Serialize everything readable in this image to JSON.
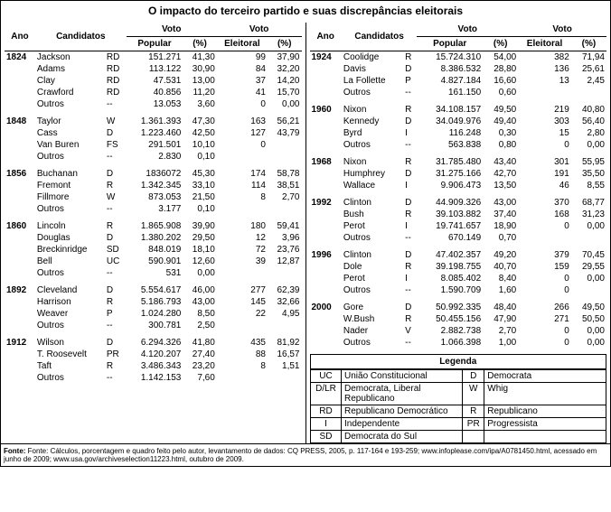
{
  "title": "O impacto  do terceiro partido e suas discrepâncias eleitorais",
  "headers": {
    "ano": "Ano",
    "candidatos": "Candidatos",
    "voto": "Voto",
    "popular": "Popular",
    "pct": "(%)",
    "eleitoral": "Eleitoral"
  },
  "left_years": [
    {
      "year": "1824",
      "rows": [
        {
          "cand": "Jackson",
          "party": "RD",
          "pop": "151.271",
          "ppct": "41,30",
          "ev": "99",
          "evpct": "37,90"
        },
        {
          "cand": "Adams",
          "party": "RD",
          "pop": "113.122",
          "ppct": "30,90",
          "ev": "84",
          "evpct": "32,20"
        },
        {
          "cand": "Clay",
          "party": "RD",
          "pop": "47.531",
          "ppct": "13,00",
          "ev": "37",
          "evpct": "14,20"
        },
        {
          "cand": "Crawford",
          "party": "RD",
          "pop": "40.856",
          "ppct": "11,20",
          "ev": "41",
          "evpct": "15,70"
        },
        {
          "cand": "Outros",
          "party": "--",
          "pop": "13.053",
          "ppct": "3,60",
          "ev": "0",
          "evpct": "0,00"
        }
      ]
    },
    {
      "year": "1848",
      "rows": [
        {
          "cand": "Taylor",
          "party": "W",
          "pop": "1.361.393",
          "ppct": "47,30",
          "ev": "163",
          "evpct": "56,21"
        },
        {
          "cand": "Cass",
          "party": "D",
          "pop": "1.223.460",
          "ppct": "42,50",
          "ev": "127",
          "evpct": "43,79"
        },
        {
          "cand": "Van Buren",
          "party": "FS",
          "pop": "291.501",
          "ppct": "10,10",
          "ev": "0",
          "evpct": ""
        },
        {
          "cand": "Outros",
          "party": "--",
          "pop": "2.830",
          "ppct": "0,10",
          "ev": "",
          "evpct": ""
        }
      ]
    },
    {
      "year": "1856",
      "rows": [
        {
          "cand": "Buchanan",
          "party": "D",
          "pop": "1836072",
          "ppct": "45,30",
          "ev": "174",
          "evpct": "58,78"
        },
        {
          "cand": "Fremont",
          "party": "R",
          "pop": "1.342.345",
          "ppct": "33,10",
          "ev": "114",
          "evpct": "38,51"
        },
        {
          "cand": "Fillmore",
          "party": "W",
          "pop": "873.053",
          "ppct": "21,50",
          "ev": "8",
          "evpct": "2,70"
        },
        {
          "cand": "Outros",
          "party": "--",
          "pop": "3.177",
          "ppct": "0,10",
          "ev": "",
          "evpct": ""
        }
      ]
    },
    {
      "year": "1860",
      "rows": [
        {
          "cand": "Lincoln",
          "party": "R",
          "pop": "1.865.908",
          "ppct": "39,90",
          "ev": "180",
          "evpct": "59,41"
        },
        {
          "cand": "Douglas",
          "party": "D",
          "pop": "1.380.202",
          "ppct": "29,50",
          "ev": "12",
          "evpct": "3,96"
        },
        {
          "cand": "Breckinridge",
          "party": "SD",
          "pop": "848.019",
          "ppct": "18,10",
          "ev": "72",
          "evpct": "23,76"
        },
        {
          "cand": "Bell",
          "party": "UC",
          "pop": "590.901",
          "ppct": "12,60",
          "ev": "39",
          "evpct": "12,87"
        },
        {
          "cand": "Outros",
          "party": "--",
          "pop": "531",
          "ppct": "0,00",
          "ev": "",
          "evpct": ""
        }
      ]
    },
    {
      "year": "1892",
      "rows": [
        {
          "cand": "Cleveland",
          "party": "D",
          "pop": "5.554.617",
          "ppct": "46,00",
          "ev": "277",
          "evpct": "62,39"
        },
        {
          "cand": "Harrison",
          "party": "R",
          "pop": "5.186.793",
          "ppct": "43,00",
          "ev": "145",
          "evpct": "32,66"
        },
        {
          "cand": "Weaver",
          "party": "P",
          "pop": "1.024.280",
          "ppct": "8,50",
          "ev": "22",
          "evpct": "4,95"
        },
        {
          "cand": "Outros",
          "party": "--",
          "pop": "300.781",
          "ppct": "2,50",
          "ev": "",
          "evpct": ""
        }
      ]
    },
    {
      "year": "1912",
      "rows": [
        {
          "cand": "Wilson",
          "party": "D",
          "pop": "6.294.326",
          "ppct": "41,80",
          "ev": "435",
          "evpct": "81,92"
        },
        {
          "cand": "T. Roosevelt",
          "party": "PR",
          "pop": "4.120.207",
          "ppct": "27,40",
          "ev": "88",
          "evpct": "16,57"
        },
        {
          "cand": "Taft",
          "party": "R",
          "pop": "3.486.343",
          "ppct": "23,20",
          "ev": "8",
          "evpct": "1,51"
        },
        {
          "cand": "Outros",
          "party": "--",
          "pop": "1.142.153",
          "ppct": "7,60",
          "ev": "",
          "evpct": ""
        }
      ]
    }
  ],
  "right_years": [
    {
      "year": "1924",
      "rows": [
        {
          "cand": "Coolidge",
          "party": "R",
          "pop": "15.724.310",
          "ppct": "54,00",
          "ev": "382",
          "evpct": "71,94"
        },
        {
          "cand": "Davis",
          "party": "D",
          "pop": "8.386.532",
          "ppct": "28,80",
          "ev": "136",
          "evpct": "25,61"
        },
        {
          "cand": "La Follette",
          "party": "P",
          "pop": "4.827.184",
          "ppct": "16,60",
          "ev": "13",
          "evpct": "2,45"
        },
        {
          "cand": "Outros",
          "party": "--",
          "pop": "161.150",
          "ppct": "0,60",
          "ev": "",
          "evpct": ""
        }
      ]
    },
    {
      "year": "1960",
      "rows": [
        {
          "cand": "Nixon",
          "party": "R",
          "pop": "34.108.157",
          "ppct": "49,50",
          "ev": "219",
          "evpct": "40,80"
        },
        {
          "cand": "Kennedy",
          "party": "D",
          "pop": "34.049.976",
          "ppct": "49,40",
          "ev": "303",
          "evpct": "56,40"
        },
        {
          "cand": "Byrd",
          "party": "I",
          "pop": "116.248",
          "ppct": "0,30",
          "ev": "15",
          "evpct": "2,80"
        },
        {
          "cand": "Outros",
          "party": "--",
          "pop": "563.838",
          "ppct": "0,80",
          "ev": "0",
          "evpct": "0,00"
        }
      ]
    },
    {
      "year": "1968",
      "rows": [
        {
          "cand": "Nixon",
          "party": "R",
          "pop": "31.785.480",
          "ppct": "43,40",
          "ev": "301",
          "evpct": "55,95"
        },
        {
          "cand": "Humphrey",
          "party": "D",
          "pop": "31.275.166",
          "ppct": "42,70",
          "ev": "191",
          "evpct": "35,50"
        },
        {
          "cand": "Wallace",
          "party": "I",
          "pop": "9.906.473",
          "ppct": "13,50",
          "ev": "46",
          "evpct": "8,55"
        }
      ]
    },
    {
      "year": "1992",
      "rows": [
        {
          "cand": "Clinton",
          "party": "D",
          "pop": "44.909.326",
          "ppct": "43,00",
          "ev": "370",
          "evpct": "68,77"
        },
        {
          "cand": "Bush",
          "party": "R",
          "pop": "39.103.882",
          "ppct": "37,40",
          "ev": "168",
          "evpct": "31,23"
        },
        {
          "cand": "Perot",
          "party": "I",
          "pop": "19.741.657",
          "ppct": "18,90",
          "ev": "0",
          "evpct": "0,00"
        },
        {
          "cand": "Outros",
          "party": "--",
          "pop": "670.149",
          "ppct": "0,70",
          "ev": "",
          "evpct": ""
        }
      ]
    },
    {
      "year": "1996",
      "rows": [
        {
          "cand": "Clinton",
          "party": "D",
          "pop": "47.402.357",
          "ppct": "49,20",
          "ev": "379",
          "evpct": "70,45"
        },
        {
          "cand": "Dole",
          "party": "R",
          "pop": "39.198.755",
          "ppct": "40,70",
          "ev": "159",
          "evpct": "29,55"
        },
        {
          "cand": "Perot",
          "party": "I",
          "pop": "8.085.402",
          "ppct": "8,40",
          "ev": "0",
          "evpct": "0,00"
        },
        {
          "cand": "Outros",
          "party": "--",
          "pop": "1.590.709",
          "ppct": "1,60",
          "ev": "0",
          "evpct": ""
        }
      ]
    },
    {
      "year": "2000",
      "rows": [
        {
          "cand": "Gore",
          "party": "D",
          "pop": "50.992.335",
          "ppct": "48,40",
          "ev": "266",
          "evpct": "49,50"
        },
        {
          "cand": "W.Bush",
          "party": "R",
          "pop": "50.455.156",
          "ppct": "47,90",
          "ev": "271",
          "evpct": "50,50"
        },
        {
          "cand": "Nader",
          "party": "V",
          "pop": "2.882.738",
          "ppct": "2,70",
          "ev": "0",
          "evpct": "0,00"
        },
        {
          "cand": "Outros",
          "party": "--",
          "pop": "1.066.398",
          "ppct": "1,00",
          "ev": "0",
          "evpct": "0,00"
        }
      ]
    }
  ],
  "legend": {
    "title": "Legenda",
    "items": [
      {
        "code": "UC",
        "name": "União Constitucional",
        "code2": "D",
        "name2": "Democrata"
      },
      {
        "code": "D/LR",
        "name": "Democrata, Liberal Republicano",
        "code2": "W",
        "name2": "Whig"
      },
      {
        "code": "RD",
        "name": "Republicano Democrático",
        "code2": "R",
        "name2": "Republicano"
      },
      {
        "code": "I",
        "name": "Independente",
        "code2": "PR",
        "name2": "Progressista"
      },
      {
        "code": "SD",
        "name": "Democrata do Sul",
        "code2": "",
        "name2": ""
      }
    ]
  },
  "footer": "Fonte: Cálculos, porcentagem e quadro feito pelo autor, levantamento de dados: CQ PRESS, 2005, p. 117-164 e 193-259; www.infoplease.com/ipa/A0781450.html, acessado em junho de 2009; www.usa.gov/archiveselection11223.html, outubro de 2009."
}
